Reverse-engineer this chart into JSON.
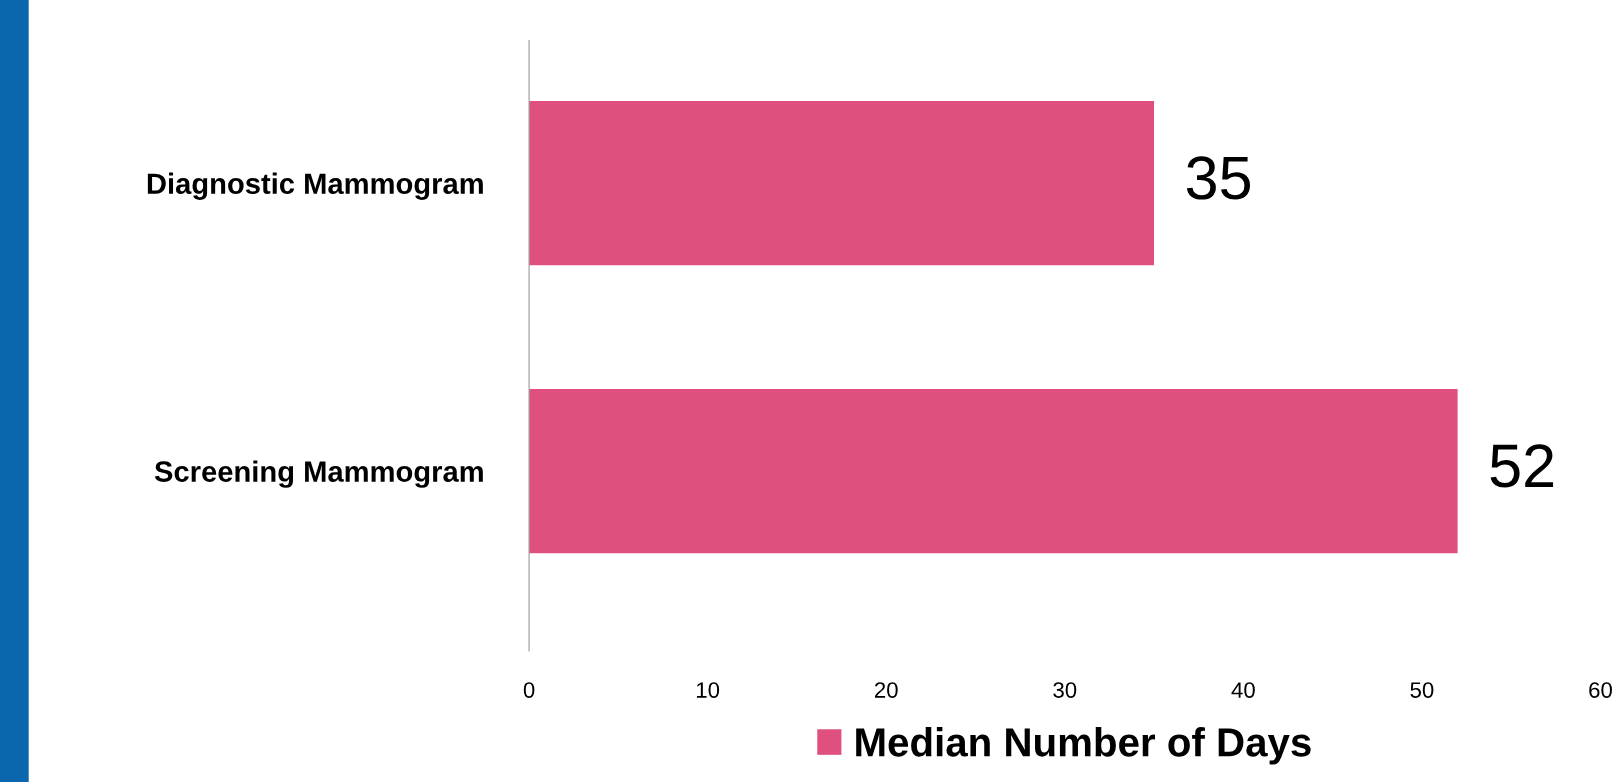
{
  "chart_data": {
    "type": "bar",
    "orientation": "horizontal",
    "categories": [
      "Diagnostic Mammogram",
      "Screening Mammogram"
    ],
    "series": [
      {
        "name": "Median Number of Days",
        "color": "#e0507f",
        "values": [
          35,
          52
        ]
      }
    ],
    "xlim": [
      0,
      60
    ],
    "xticks": [
      0,
      10,
      20,
      30,
      40,
      50,
      60
    ],
    "grid": false,
    "legend": "bottom",
    "data_labels": true
  }
}
